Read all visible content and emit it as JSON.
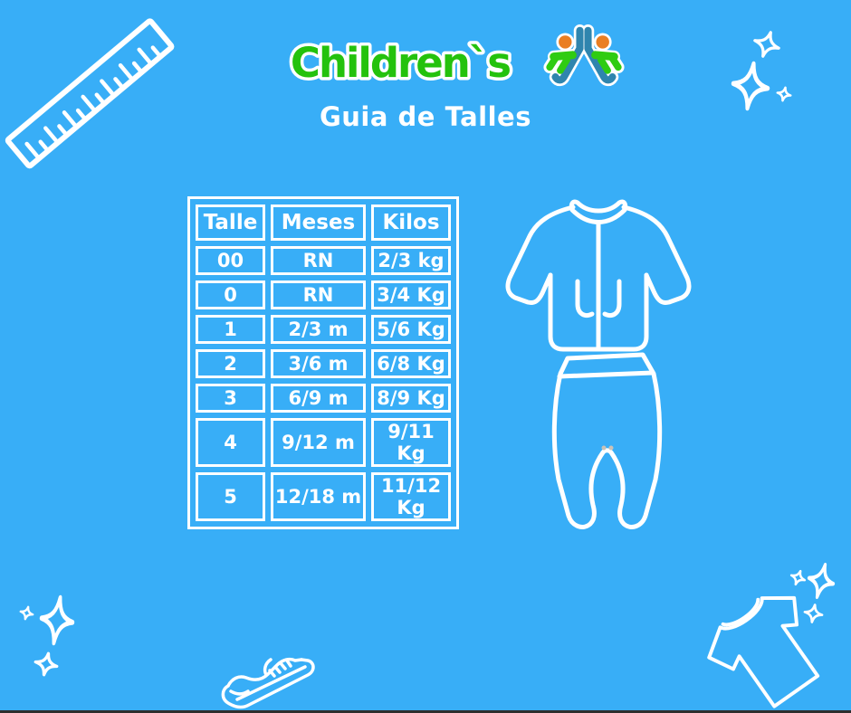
{
  "page": {
    "background_color": "#38AEF7",
    "text_color": "#FFFFFF",
    "bottom_edge_color": "#2E2E2E"
  },
  "logo": {
    "brand": "Children`s",
    "brand_color": "#24C20D",
    "icon_name": "children-figures-icon",
    "icon_colors": {
      "body": "#2F85AE",
      "head": "#EA7E22",
      "arms": "#2FCC12"
    }
  },
  "title": "Guia de Talles",
  "size_table": {
    "columns": [
      "Talle",
      "Meses",
      "Kilos"
    ],
    "rows": [
      [
        "00",
        "RN",
        "2/3 kg"
      ],
      [
        "0",
        "RN",
        "3/4 Kg"
      ],
      [
        "1",
        "2/3 m",
        "5/6 Kg"
      ],
      [
        "2",
        "3/6 m",
        "6/8 Kg"
      ],
      [
        "3",
        "6/9 m",
        "8/9 Kg"
      ],
      [
        "4",
        "9/12 m",
        "9/11 Kg"
      ],
      [
        "5",
        "12/18 m",
        "11/12 Kg"
      ]
    ]
  },
  "decorations": {
    "items": [
      "ruler-icon",
      "sparkle-icons",
      "baby-jacket-illustration",
      "baby-footed-pants-illustration",
      "sneaker-icon",
      "tshirt-icon"
    ],
    "line_color": "#FFFFFF"
  }
}
